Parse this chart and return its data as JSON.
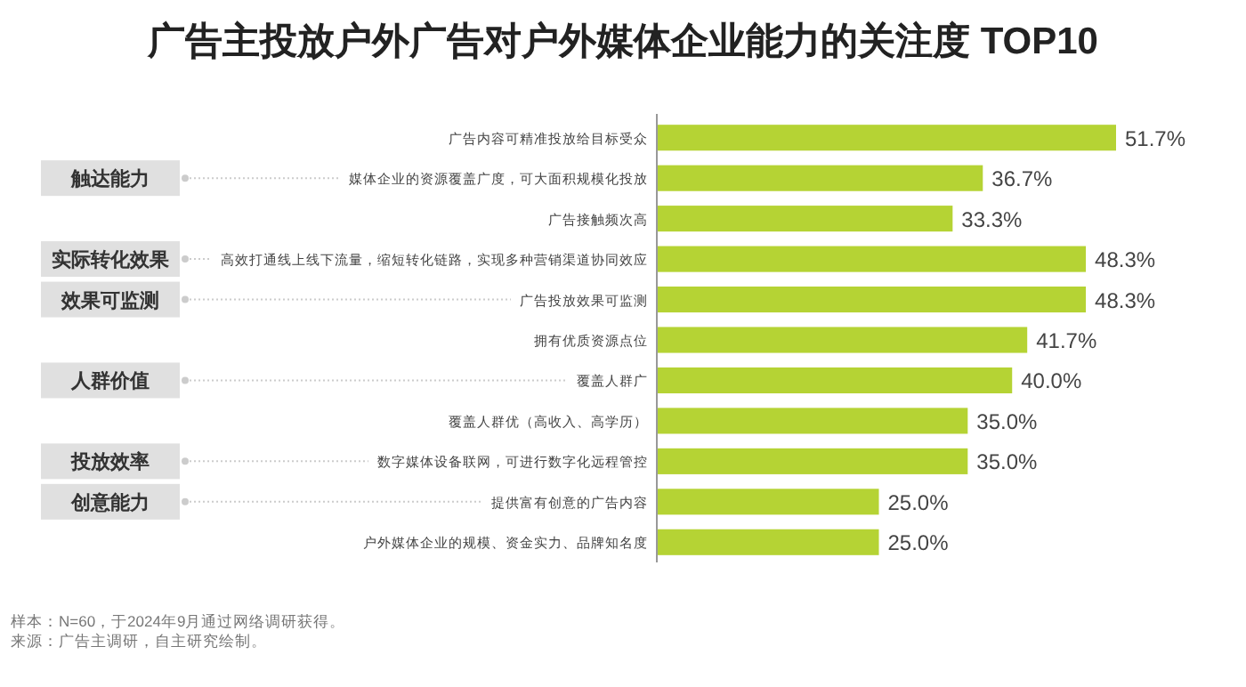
{
  "chart_data": {
    "type": "bar",
    "orientation": "horizontal",
    "title": "广告主投放户外广告对户外媒体企业能力的关注度 TOP10",
    "categories": [
      "广告内容可精准投放给目标受众",
      "媒体企业的资源覆盖广度，可大面积规模化投放",
      "广告接触频次高",
      "高效打通线上线下流量，缩短转化链路，实现多种营销渠道协同效应",
      "广告投放效果可监测",
      "拥有优质资源点位",
      "覆盖人群广",
      "覆盖人群优（高收入、高学历）",
      "数字媒体设备联网，可进行数字化远程管控",
      "提供富有创意的广告内容",
      "户外媒体企业的规模、资金实力、品牌知名度"
    ],
    "values": [
      51.7,
      36.7,
      33.3,
      48.3,
      48.3,
      41.7,
      40.0,
      35.0,
      35.0,
      25.0,
      25.0
    ],
    "value_labels": [
      "51.7%",
      "36.7%",
      "33.3%",
      "48.3%",
      "48.3%",
      "41.7%",
      "40.0%",
      "35.0%",
      "35.0%",
      "25.0%",
      "25.0%"
    ],
    "color": "#b5d334",
    "annotations": [
      "触达能力",
      "实际转化效果",
      "效果可监测",
      "人群价值",
      "投放效率",
      "创意能力",
      "样本：N=60，于2024年9月通过网络调研获得。",
      "来源：广告主调研，自主研究绘制。"
    ]
  }
}
